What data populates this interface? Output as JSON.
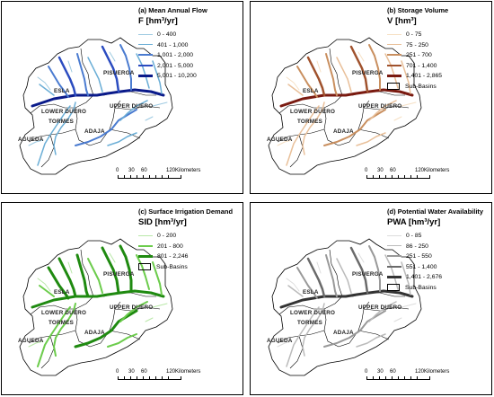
{
  "basins": [
    "ESLA",
    "PISUERGA",
    "UPPER DUERO",
    "LOWER DUERO",
    "ADAJA",
    "TORMES",
    "AGUEDA"
  ],
  "panels": [
    {
      "title": "(a) Mean Annual Flow",
      "variable": "F [hm³/yr]",
      "legend": [
        {
          "label": "0 - 400",
          "color": "#9ecae1",
          "width": 1
        },
        {
          "label": "401 - 1,000",
          "color": "#6baed6",
          "width": 1.5
        },
        {
          "label": "1,001 - 2,000",
          "color": "#4a7bd0",
          "width": 2
        },
        {
          "label": "2,001 - 5,000",
          "color": "#2b4cc0",
          "width": 2.5
        },
        {
          "label": "5,001 - 10,200",
          "color": "#0a1a8a",
          "width": 3
        }
      ],
      "show_subbasins": false
    },
    {
      "title": "(b) Storage Volume",
      "variable": "V [hm³]",
      "legend": [
        {
          "label": "0 - 75",
          "color": "#f6e0c4",
          "width": 1
        },
        {
          "label": "75 - 250",
          "color": "#e9c09a",
          "width": 1.5
        },
        {
          "label": "251 - 700",
          "color": "#c98f5f",
          "width": 2
        },
        {
          "label": "701 - 1,400",
          "color": "#a0522d",
          "width": 2.5
        },
        {
          "label": "1,401 - 2,865",
          "color": "#7a1a10",
          "width": 3
        }
      ],
      "show_subbasins": true
    },
    {
      "title": "(c) Surface Irrigation Demand",
      "variable": "SID [hm³/yr]",
      "legend": [
        {
          "label": "0 - 200",
          "color": "#b9e8a8",
          "width": 1
        },
        {
          "label": "201 - 800",
          "color": "#6ccc4c",
          "width": 2
        },
        {
          "label": "801 - 2,246",
          "color": "#1f8a10",
          "width": 3
        }
      ],
      "show_subbasins": true
    },
    {
      "title": "(d) Potential Water Availability",
      "variable": "PWA [hm³/yr]",
      "legend": [
        {
          "label": "0 - 85",
          "color": "#dddddd",
          "width": 1
        },
        {
          "label": "86 - 250",
          "color": "#bbbbbb",
          "width": 1.5
        },
        {
          "label": "251 - 550",
          "color": "#999999",
          "width": 2
        },
        {
          "label": "551 - 1,400",
          "color": "#6a6a6a",
          "width": 2.5
        },
        {
          "label": "1,401 - 2,676",
          "color": "#333333",
          "width": 3
        }
      ],
      "show_subbasins": true
    }
  ],
  "subbasins_label": "Sub-Basins",
  "scale": {
    "ticks": [
      "0",
      "30",
      "60",
      "120"
    ],
    "unit": "Kilometers"
  }
}
